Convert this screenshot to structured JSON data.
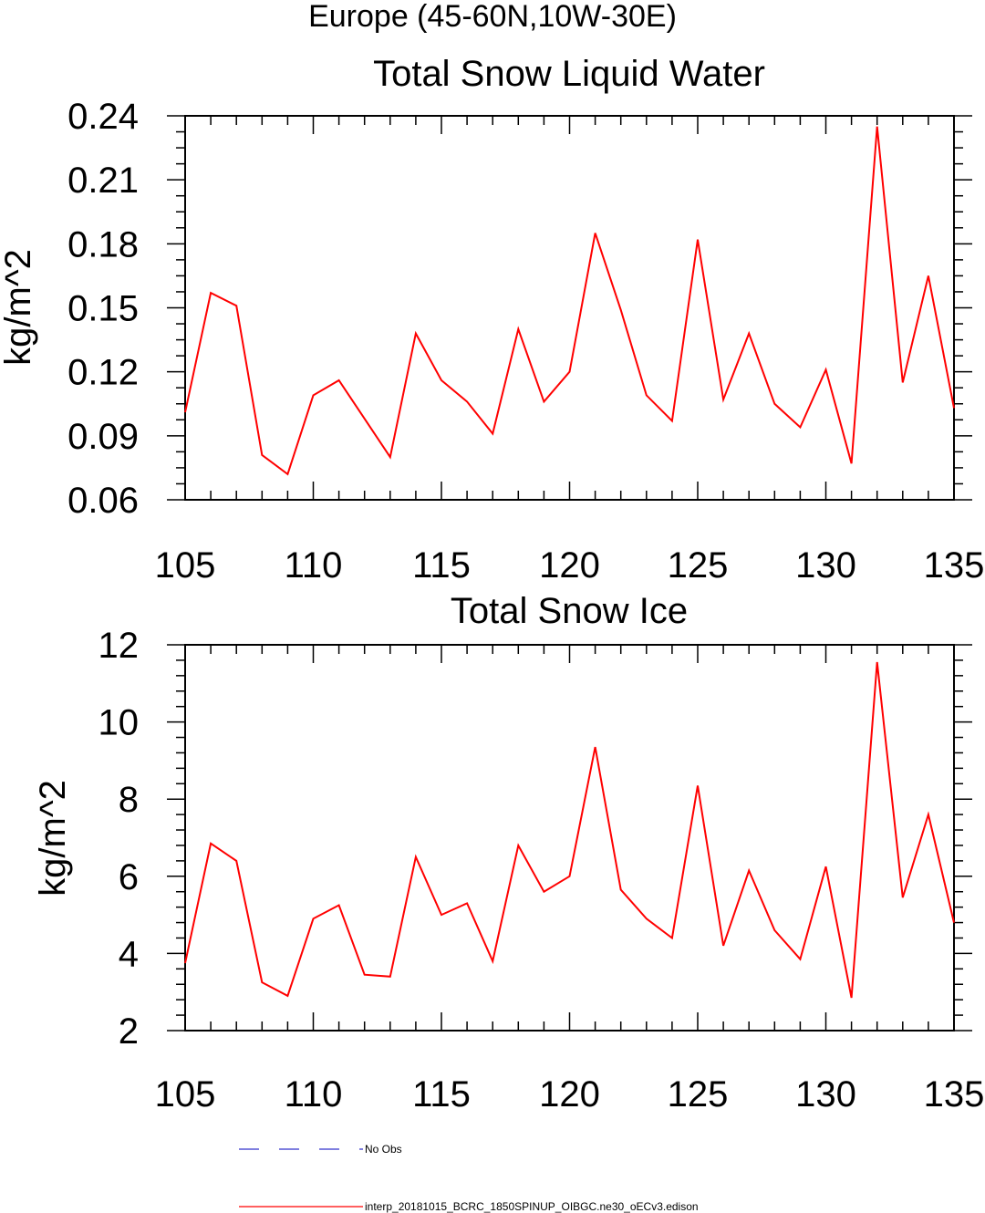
{
  "figure_title": "Europe (45-60N,10W-30E)",
  "chart_data": [
    {
      "type": "line",
      "title": "Total Snow Liquid Water",
      "xlabel": "",
      "ylabel": "kg/m^2",
      "xlim": [
        105,
        135
      ],
      "ylim": [
        0.06,
        0.24
      ],
      "xticks": [
        "105",
        "110",
        "115",
        "120",
        "125",
        "130",
        "135"
      ],
      "yticks": [
        "0.06",
        "0.09",
        "0.12",
        "0.15",
        "0.18",
        "0.21",
        "0.24"
      ],
      "grid": false,
      "x": [
        105,
        106,
        107,
        108,
        109,
        110,
        111,
        112,
        113,
        114,
        115,
        116,
        117,
        118,
        119,
        120,
        121,
        122,
        123,
        124,
        125,
        126,
        127,
        128,
        129,
        130,
        131,
        132,
        133,
        134,
        135
      ],
      "series": [
        {
          "name": "interp_20181015_BCRC_1850SPINUP_OIBGC.ne30_oECv3.edison",
          "color": "#ff0000",
          "values": [
            0.101,
            0.157,
            0.151,
            0.081,
            0.072,
            0.109,
            0.116,
            0.098,
            0.08,
            0.138,
            0.116,
            0.106,
            0.091,
            0.14,
            0.106,
            0.12,
            0.185,
            0.149,
            0.109,
            0.097,
            0.182,
            0.107,
            0.138,
            0.105,
            0.094,
            0.121,
            0.077,
            0.235,
            0.115,
            0.165,
            0.103
          ]
        }
      ]
    },
    {
      "type": "line",
      "title": "Total Snow Ice",
      "xlabel": "",
      "ylabel": "kg/m^2",
      "xlim": [
        105,
        135
      ],
      "ylim": [
        2,
        12
      ],
      "xticks": [
        "105",
        "110",
        "115",
        "120",
        "125",
        "130",
        "135"
      ],
      "yticks": [
        "2",
        "4",
        "6",
        "8",
        "10",
        "12"
      ],
      "grid": false,
      "x": [
        105,
        106,
        107,
        108,
        109,
        110,
        111,
        112,
        113,
        114,
        115,
        116,
        117,
        118,
        119,
        120,
        121,
        122,
        123,
        124,
        125,
        126,
        127,
        128,
        129,
        130,
        131,
        132,
        133,
        134,
        135
      ],
      "series": [
        {
          "name": "interp_20181015_BCRC_1850SPINUP_OIBGC.ne30_oECv3.edison",
          "color": "#ff0000",
          "values": [
            3.75,
            6.85,
            6.4,
            3.25,
            2.9,
            4.9,
            5.25,
            3.45,
            3.4,
            6.5,
            5.0,
            5.3,
            3.8,
            6.8,
            5.6,
            6.0,
            9.35,
            5.65,
            4.9,
            4.4,
            8.35,
            4.2,
            6.15,
            4.6,
            3.85,
            6.25,
            2.85,
            11.55,
            5.45,
            7.6,
            4.8
          ]
        }
      ]
    }
  ],
  "legend": [
    {
      "label": "No Obs",
      "style": "dashed",
      "color": "#3333cc"
    },
    {
      "label": "interp_20181015_BCRC_1850SPINUP_OIBGC.ne30_oECv3.edison",
      "style": "solid",
      "color": "#ff0000"
    }
  ]
}
